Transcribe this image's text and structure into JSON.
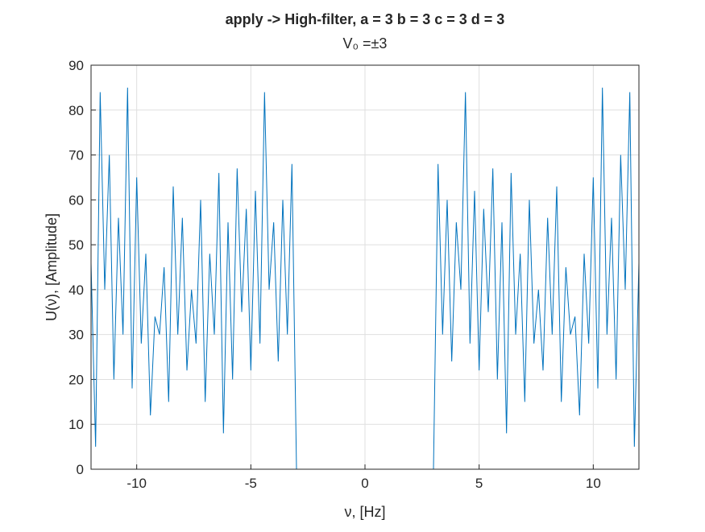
{
  "chart_data": {
    "type": "line",
    "title": "apply -> High-filter, a = 3 b = 3 c = 3 d = 3",
    "subtitle": "V₀ =±3",
    "x_label": "ν, [Hz]",
    "y_label": "U(ν), [Amplitude]",
    "color": "#0072bd",
    "grid": true,
    "xlim": [
      -12,
      12
    ],
    "ylim": [
      0,
      90
    ],
    "xticks": [
      -10,
      -5,
      0,
      5,
      10
    ],
    "yticks": [
      0,
      10,
      20,
      30,
      40,
      50,
      60,
      70,
      80,
      90
    ],
    "x": [
      -12,
      -11.8,
      -11.6,
      -11.4,
      -11.2,
      -11,
      -10.8,
      -10.6,
      -10.4,
      -10.2,
      -10,
      -9.8,
      -9.6,
      -9.4,
      -9.2,
      -9,
      -8.8,
      -8.6,
      -8.4,
      -8.2,
      -8,
      -7.8,
      -7.6,
      -7.4,
      -7.2,
      -7,
      -6.8,
      -6.6,
      -6.4,
      -6.2,
      -6,
      -5.8,
      -5.6,
      -5.4,
      -5.2,
      -5,
      -4.8,
      -4.6,
      -4.4,
      -4.2,
      -4,
      -3.8,
      -3.6,
      -3.4,
      -3.2,
      -3,
      -2.8,
      -2.6,
      -2.4,
      -2.2,
      -2,
      -1.8,
      -1.6,
      -1.4,
      -1.2,
      -1,
      -0.8,
      -0.6,
      -0.4,
      -0.2,
      0,
      0.2,
      0.4,
      0.6,
      0.8,
      1,
      1.2,
      1.4,
      1.6,
      1.8,
      2,
      2.2,
      2.4,
      2.6,
      2.8,
      3,
      3.2,
      3.4,
      3.6,
      3.8,
      4,
      4.2,
      4.4,
      4.6,
      4.8,
      5,
      5.2,
      5.4,
      5.6,
      5.8,
      6,
      6.2,
      6.4,
      6.6,
      6.8,
      7,
      7.2,
      7.4,
      7.6,
      7.8,
      8,
      8.2,
      8.4,
      8.6,
      8.8,
      9,
      9.2,
      9.4,
      9.6,
      9.8,
      10,
      10.2,
      10.4,
      10.6,
      10.8,
      11,
      11.2,
      11.4,
      11.6,
      11.8,
      12
    ],
    "values": [
      46,
      5,
      84,
      40,
      70,
      20,
      56,
      30,
      85,
      18,
      65,
      28,
      48,
      12,
      34,
      30,
      45,
      15,
      63,
      30,
      56,
      22,
      40,
      28,
      60,
      15,
      48,
      30,
      66,
      8,
      55,
      20,
      67,
      35,
      58,
      22,
      62,
      28,
      84,
      40,
      55,
      24,
      60,
      30,
      68,
      0,
      0,
      0,
      0,
      0,
      0,
      0,
      0,
      0,
      0,
      0,
      0,
      0,
      0,
      0,
      0,
      0,
      0,
      0,
      0,
      0,
      0,
      0,
      0,
      0,
      0,
      0,
      0,
      0,
      0,
      0,
      68,
      30,
      60,
      24,
      55,
      40,
      84,
      28,
      62,
      22,
      58,
      35,
      67,
      20,
      55,
      8,
      66,
      30,
      48,
      15,
      60,
      28,
      40,
      22,
      56,
      30,
      63,
      15,
      45,
      30,
      34,
      12,
      48,
      28,
      65,
      18,
      85,
      30,
      56,
      20,
      70,
      40,
      84,
      5,
      46
    ]
  }
}
